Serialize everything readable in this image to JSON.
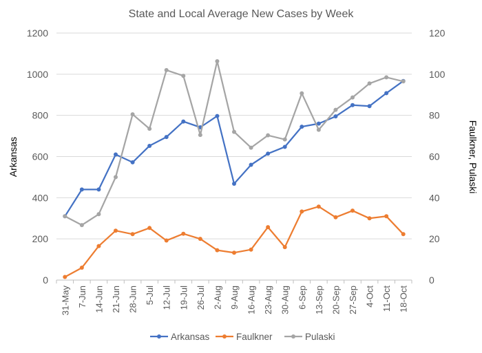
{
  "chart_data": {
    "type": "line",
    "title": "State and Local Average New Cases by Week",
    "ylabel": "Arkansas",
    "y2label": "Faulkner, Pulaski",
    "xlabel": "",
    "ylim": [
      0,
      1200
    ],
    "y2lim": [
      0,
      120
    ],
    "yticks": [
      0,
      200,
      400,
      600,
      800,
      1000,
      1200
    ],
    "y2ticks": [
      0,
      20,
      40,
      60,
      80,
      100,
      120
    ],
    "grid": true,
    "legend": "bottom",
    "categories": [
      "31-May",
      "7-Jun",
      "14-Jun",
      "21-Jun",
      "28-Jun",
      "5-Jul",
      "12-Jul",
      "19-Jul",
      "26-Jul",
      "2-Aug",
      "9-Aug",
      "16-Aug",
      "23-Aug",
      "30-Aug",
      "6-Sep",
      "13-Sep",
      "20-Sep",
      "27-Sep",
      "4-Oct",
      "11-Oct",
      "18-Oct"
    ],
    "series": [
      {
        "name": "Arkansas",
        "axis": "left",
        "color": "#4472c4",
        "values": [
          310,
          440,
          440,
          610,
          572,
          652,
          695,
          770,
          742,
          797,
          468,
          560,
          614,
          647,
          745,
          760,
          795,
          850,
          845,
          908,
          967
        ]
      },
      {
        "name": "Faulkner",
        "axis": "right",
        "color": "#ed7d31",
        "values": [
          1.5,
          6,
          16.5,
          24,
          22.3,
          25.3,
          19.2,
          22.5,
          20,
          14.5,
          13.3,
          14.8,
          25.7,
          16,
          33.3,
          35.7,
          30.5,
          33.7,
          30,
          31,
          22.3
        ]
      },
      {
        "name": "Pulaski",
        "axis": "right",
        "color": "#a5a5a5",
        "values": [
          31,
          26.7,
          32,
          50,
          80.5,
          73.5,
          102,
          99.2,
          70.5,
          106.3,
          72,
          64.3,
          70.3,
          68.3,
          90.7,
          73,
          82.7,
          88.7,
          95.5,
          98.5,
          96.5
        ]
      }
    ]
  }
}
